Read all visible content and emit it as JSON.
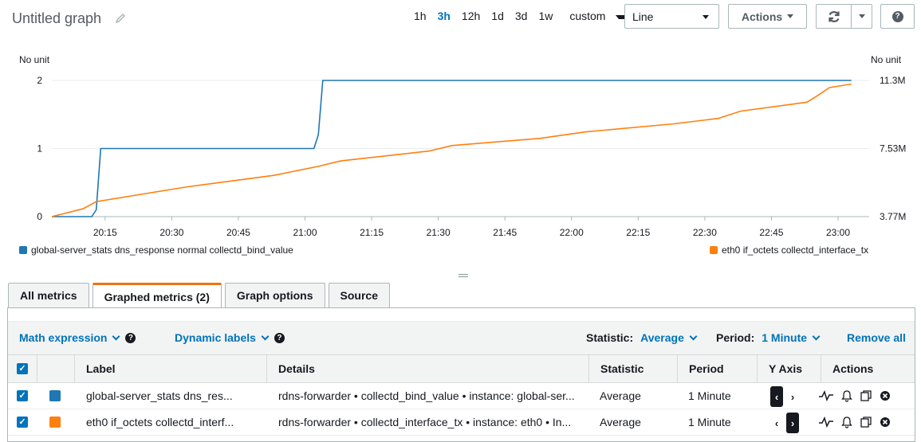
{
  "header": {
    "title": "Untitled graph",
    "time_ranges": [
      "1h",
      "3h",
      "12h",
      "1d",
      "3d",
      "1w"
    ],
    "active_range": "3h",
    "custom_label": "custom",
    "chart_type": "Line",
    "actions_label": "Actions"
  },
  "chart_data": {
    "type": "line",
    "left_unit": "No unit",
    "right_unit": "No unit",
    "x_ticks": [
      "20:15",
      "20:30",
      "20:45",
      "21:00",
      "21:15",
      "21:30",
      "21:45",
      "22:00",
      "22:15",
      "22:30",
      "22:45",
      "23:00"
    ],
    "y_left_ticks": [
      "0",
      "1",
      "2"
    ],
    "y_right_ticks": [
      "3.77M",
      "7.53M",
      "11.3M"
    ],
    "ylim_left": [
      0,
      2
    ],
    "ylim_right": [
      3.77,
      11.3
    ],
    "grid": "horizontal",
    "legend_position": "bottom",
    "series": [
      {
        "name": "global-server_stats dns_response normal collectd_bind_value",
        "axis": "left",
        "color": "#1f77b4",
        "points": [
          [
            0,
            0
          ],
          [
            9,
            0
          ],
          [
            10,
            0.1
          ],
          [
            11,
            1
          ],
          [
            59,
            1
          ],
          [
            60,
            1.2
          ],
          [
            61,
            2
          ],
          [
            180,
            2
          ]
        ]
      },
      {
        "name": "eth0 if_octets collectd_interface_tx",
        "axis": "right",
        "color": "#ff7f0e",
        "points": [
          [
            0,
            3.77
          ],
          [
            7,
            4.2
          ],
          [
            10,
            4.6
          ],
          [
            30,
            5.4
          ],
          [
            50,
            6.05
          ],
          [
            55,
            6.3
          ],
          [
            60,
            6.55
          ],
          [
            65,
            6.85
          ],
          [
            85,
            7.4
          ],
          [
            90,
            7.7
          ],
          [
            110,
            8.1
          ],
          [
            120,
            8.45
          ],
          [
            140,
            8.9
          ],
          [
            150,
            9.2
          ],
          [
            155,
            9.6
          ],
          [
            170,
            10.1
          ],
          [
            172,
            10.4
          ],
          [
            175,
            10.9
          ],
          [
            180,
            11.1
          ]
        ]
      }
    ]
  },
  "tabs": [
    {
      "label": "All metrics",
      "active": false
    },
    {
      "label": "Graphed metrics (2)",
      "active": true
    },
    {
      "label": "Graph options",
      "active": false
    },
    {
      "label": "Source",
      "active": false
    }
  ],
  "toolbar": {
    "math_expression": "Math expression",
    "dynamic_labels": "Dynamic labels",
    "statistic_label": "Statistic:",
    "statistic_value": "Average",
    "period_label": "Period:",
    "period_value": "1 Minute",
    "remove_all": "Remove all"
  },
  "table": {
    "headers": [
      "Label",
      "Details",
      "Statistic",
      "Period",
      "Y Axis",
      "Actions"
    ],
    "rows": [
      {
        "color": "#1f77b4",
        "label": "global-server_stats dns_res...",
        "details": "rdns-forwarder • collectd_bind_value • instance: global-ser...",
        "statistic": "Average",
        "period": "1 Minute",
        "y_axis": "left"
      },
      {
        "color": "#ff7f0e",
        "label": "eth0 if_octets collectd_interf...",
        "details": "rdns-forwarder • collectd_interface_tx • instance: eth0 • In...",
        "statistic": "Average",
        "period": "1 Minute",
        "y_axis": "right"
      }
    ]
  }
}
